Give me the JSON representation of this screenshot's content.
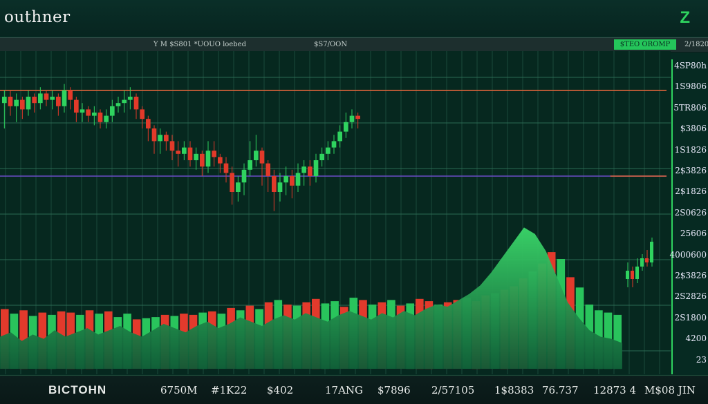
{
  "header": {
    "brand": "outhner",
    "brand_mark": "Z"
  },
  "ticker": {
    "item1": "Y M $S801 *UOUO loebed",
    "item2": "$S7/OON",
    "badge": "$TEO OROMP",
    "item3": "2/1820"
  },
  "price_axis": {
    "labels": [
      "4SP80h",
      "1S9806",
      "5TR806",
      "$3806",
      "1S1826",
      "2$3826",
      "2$1826",
      "2S0626",
      "25606",
      "4000600",
      "2$3826",
      "2S2826",
      "2S1800",
      "4200",
      "23"
    ]
  },
  "bottom": {
    "name": "BICTOHN",
    "values": [
      "6750M",
      "#1K22",
      "$402",
      "17ANG",
      "$7896",
      "2/57105",
      "1$8383",
      "76.737",
      "12873 4",
      "M$08 JIN"
    ]
  },
  "chart_data": {
    "type": "candlestick",
    "title": "",
    "xlabel": "",
    "ylabel": "",
    "ylim": [
      0,
      100
    ],
    "grid": true,
    "reference_lines": [
      {
        "color": "#e0643a",
        "level": 82
      },
      {
        "color": "#6b4cc9",
        "level": 55
      },
      {
        "color": "#e0643a",
        "level": 55,
        "x_start_frac": 0.91
      }
    ],
    "price_candles": [
      {
        "open": 78,
        "close": 80,
        "high": 82,
        "low": 70
      },
      {
        "open": 80,
        "close": 77,
        "high": 82,
        "low": 74
      },
      {
        "open": 77,
        "close": 79,
        "high": 81,
        "low": 72
      },
      {
        "open": 79,
        "close": 76,
        "high": 80,
        "low": 73
      },
      {
        "open": 76,
        "close": 80,
        "high": 82,
        "low": 74
      },
      {
        "open": 80,
        "close": 78,
        "high": 81,
        "low": 75
      },
      {
        "open": 78,
        "close": 81,
        "high": 83,
        "low": 76
      },
      {
        "open": 81,
        "close": 79,
        "high": 82,
        "low": 77
      },
      {
        "open": 79,
        "close": 80,
        "high": 82,
        "low": 76
      },
      {
        "open": 80,
        "close": 77,
        "high": 81,
        "low": 74
      },
      {
        "open": 77,
        "close": 82,
        "high": 84,
        "low": 75
      },
      {
        "open": 82,
        "close": 79,
        "high": 83,
        "low": 76
      },
      {
        "open": 79,
        "close": 75,
        "high": 80,
        "low": 72
      },
      {
        "open": 75,
        "close": 76,
        "high": 78,
        "low": 72
      },
      {
        "open": 76,
        "close": 74,
        "high": 77,
        "low": 72
      },
      {
        "open": 74,
        "close": 75,
        "high": 77,
        "low": 71
      },
      {
        "open": 75,
        "close": 72,
        "high": 76,
        "low": 70
      },
      {
        "open": 72,
        "close": 74,
        "high": 76,
        "low": 70
      },
      {
        "open": 74,
        "close": 77,
        "high": 79,
        "low": 72
      },
      {
        "open": 77,
        "close": 78,
        "high": 80,
        "low": 75
      },
      {
        "open": 78,
        "close": 79,
        "high": 82,
        "low": 75
      },
      {
        "open": 79,
        "close": 80,
        "high": 83,
        "low": 76
      },
      {
        "open": 80,
        "close": 76,
        "high": 81,
        "low": 73
      },
      {
        "open": 76,
        "close": 73,
        "high": 77,
        "low": 70
      },
      {
        "open": 73,
        "close": 70,
        "high": 74,
        "low": 66
      },
      {
        "open": 70,
        "close": 66,
        "high": 71,
        "low": 62
      },
      {
        "open": 66,
        "close": 68,
        "high": 70,
        "low": 62
      },
      {
        "open": 68,
        "close": 66,
        "high": 69,
        "low": 63
      },
      {
        "open": 66,
        "close": 63,
        "high": 68,
        "low": 60
      },
      {
        "open": 63,
        "close": 62,
        "high": 66,
        "low": 58
      },
      {
        "open": 62,
        "close": 64,
        "high": 66,
        "low": 60
      },
      {
        "open": 64,
        "close": 60,
        "high": 66,
        "low": 58
      },
      {
        "open": 60,
        "close": 62,
        "high": 64,
        "low": 57
      },
      {
        "open": 62,
        "close": 58,
        "high": 63,
        "low": 55
      },
      {
        "open": 58,
        "close": 63,
        "high": 66,
        "low": 56
      },
      {
        "open": 63,
        "close": 61,
        "high": 66,
        "low": 58
      },
      {
        "open": 61,
        "close": 59,
        "high": 62,
        "low": 56
      },
      {
        "open": 59,
        "close": 56,
        "high": 61,
        "low": 53
      },
      {
        "open": 56,
        "close": 50,
        "high": 58,
        "low": 46
      },
      {
        "open": 50,
        "close": 53,
        "high": 55,
        "low": 47
      },
      {
        "open": 53,
        "close": 57,
        "high": 59,
        "low": 49
      },
      {
        "open": 57,
        "close": 60,
        "high": 66,
        "low": 55
      },
      {
        "open": 60,
        "close": 63,
        "high": 68,
        "low": 58
      },
      {
        "open": 63,
        "close": 59,
        "high": 64,
        "low": 52
      },
      {
        "open": 59,
        "close": 55,
        "high": 60,
        "low": 50
      },
      {
        "open": 55,
        "close": 50,
        "high": 57,
        "low": 44
      },
      {
        "open": 50,
        "close": 53,
        "high": 56,
        "low": 47
      },
      {
        "open": 53,
        "close": 55,
        "high": 58,
        "low": 49
      },
      {
        "open": 55,
        "close": 52,
        "high": 57,
        "low": 48
      },
      {
        "open": 52,
        "close": 56,
        "high": 59,
        "low": 50
      },
      {
        "open": 56,
        "close": 58,
        "high": 60,
        "low": 52
      },
      {
        "open": 58,
        "close": 55,
        "high": 60,
        "low": 52
      },
      {
        "open": 55,
        "close": 60,
        "high": 62,
        "low": 53
      },
      {
        "open": 60,
        "close": 62,
        "high": 64,
        "low": 58
      },
      {
        "open": 62,
        "close": 64,
        "high": 66,
        "low": 60
      },
      {
        "open": 64,
        "close": 66,
        "high": 68,
        "low": 62
      },
      {
        "open": 66,
        "close": 69,
        "high": 71,
        "low": 64
      },
      {
        "open": 69,
        "close": 72,
        "high": 75,
        "low": 67
      },
      {
        "open": 72,
        "close": 74,
        "high": 76,
        "low": 70
      },
      {
        "open": 74,
        "close": 73,
        "high": 75,
        "low": 70
      }
    ],
    "volume_bars": [
      {
        "v": 32,
        "up": false
      },
      {
        "v": 24,
        "up": true
      },
      {
        "v": 30,
        "up": false
      },
      {
        "v": 20,
        "up": true
      },
      {
        "v": 26,
        "up": false
      },
      {
        "v": 22,
        "up": true
      },
      {
        "v": 28,
        "up": false
      },
      {
        "v": 26,
        "up": false
      },
      {
        "v": 22,
        "up": true
      },
      {
        "v": 30,
        "up": false
      },
      {
        "v": 24,
        "up": true
      },
      {
        "v": 28,
        "up": false
      },
      {
        "v": 18,
        "up": true
      },
      {
        "v": 24,
        "up": true
      },
      {
        "v": 14,
        "up": false
      },
      {
        "v": 16,
        "up": true
      },
      {
        "v": 18,
        "up": true
      },
      {
        "v": 22,
        "up": false
      },
      {
        "v": 20,
        "up": true
      },
      {
        "v": 24,
        "up": false
      },
      {
        "v": 22,
        "up": false
      },
      {
        "v": 26,
        "up": true
      },
      {
        "v": 28,
        "up": false
      },
      {
        "v": 24,
        "up": true
      },
      {
        "v": 34,
        "up": false
      },
      {
        "v": 30,
        "up": true
      },
      {
        "v": 38,
        "up": false
      },
      {
        "v": 32,
        "up": true
      },
      {
        "v": 44,
        "up": false
      },
      {
        "v": 48,
        "up": true
      },
      {
        "v": 40,
        "up": false
      },
      {
        "v": 38,
        "up": true
      },
      {
        "v": 44,
        "up": false
      },
      {
        "v": 50,
        "up": false
      },
      {
        "v": 42,
        "up": true
      },
      {
        "v": 46,
        "up": true
      },
      {
        "v": 36,
        "up": false
      },
      {
        "v": 52,
        "up": true
      },
      {
        "v": 48,
        "up": false
      },
      {
        "v": 40,
        "up": true
      },
      {
        "v": 44,
        "up": false
      },
      {
        "v": 48,
        "up": true
      },
      {
        "v": 38,
        "up": false
      },
      {
        "v": 42,
        "up": true
      },
      {
        "v": 50,
        "up": false
      },
      {
        "v": 46,
        "up": false
      },
      {
        "v": 40,
        "up": true
      },
      {
        "v": 44,
        "up": false
      },
      {
        "v": 48,
        "up": false
      },
      {
        "v": 52,
        "up": true
      },
      {
        "v": 46,
        "up": false
      },
      {
        "v": 56,
        "up": false
      },
      {
        "v": 60,
        "up": true
      },
      {
        "v": 66,
        "up": false
      },
      {
        "v": 72,
        "up": false
      },
      {
        "v": 86,
        "up": false
      },
      {
        "v": 98,
        "up": true
      },
      {
        "v": 112,
        "up": false
      },
      {
        "v": 132,
        "up": false
      },
      {
        "v": 120,
        "up": true
      },
      {
        "v": 88,
        "up": false
      },
      {
        "v": 70,
        "up": true
      },
      {
        "v": 40,
        "up": true
      },
      {
        "v": 30,
        "up": true
      },
      {
        "v": 26,
        "up": true
      },
      {
        "v": 22,
        "up": true
      }
    ],
    "volume_area": [
      30,
      34,
      26,
      32,
      28,
      36,
      30,
      34,
      38,
      32,
      36,
      40,
      34,
      30,
      36,
      42,
      38,
      34,
      40,
      44,
      38,
      42,
      48,
      44,
      40,
      46,
      50,
      46,
      52,
      48,
      44,
      50,
      54,
      50,
      46,
      52,
      48,
      54,
      50,
      56,
      60,
      58,
      64,
      70,
      78,
      90,
      104,
      118,
      132,
      126,
      110,
      86,
      62,
      48,
      36,
      30,
      28,
      24
    ],
    "right_candles": [
      {
        "open": 40,
        "close": 44,
        "high": 48,
        "low": 36
      },
      {
        "open": 44,
        "close": 40,
        "high": 46,
        "low": 36
      },
      {
        "open": 40,
        "close": 46,
        "high": 50,
        "low": 38
      },
      {
        "open": 46,
        "close": 50,
        "high": 52,
        "low": 44
      },
      {
        "open": 50,
        "close": 48,
        "high": 54,
        "low": 46
      },
      {
        "open": 48,
        "close": 58,
        "high": 60,
        "low": 46
      }
    ]
  }
}
